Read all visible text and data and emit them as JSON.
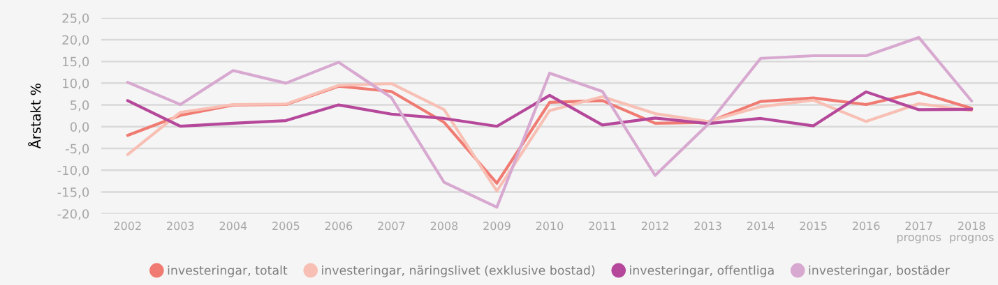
{
  "chart_data": {
    "type": "line",
    "ylabel": "Årstakt %",
    "categories": [
      "2002",
      "2003",
      "2004",
      "2005",
      "2006",
      "2007",
      "2008",
      "2009",
      "2010",
      "2011",
      "2012",
      "2013",
      "2014",
      "2015",
      "2016",
      "2017\nprognos",
      "2018\nprognos"
    ],
    "series": [
      {
        "name": "investeringar, totalt",
        "color": "#f07b72",
        "values": [
          -2.0,
          2.6,
          5.0,
          5.1,
          9.3,
          8.1,
          1.0,
          -13.0,
          5.6,
          6.0,
          0.8,
          1.0,
          5.8,
          6.6,
          5.1,
          7.9,
          4.2
        ]
      },
      {
        "name": "investeringar, näringslivet (exklusive bostad)",
        "color": "#f8c0b5",
        "values": [
          -6.4,
          3.3,
          5.1,
          5.2,
          9.5,
          9.9,
          3.9,
          -14.8,
          3.7,
          6.9,
          3.0,
          1.2,
          4.6,
          6.1,
          1.2,
          5.3,
          3.7
        ]
      },
      {
        "name": "investeringar, offentliga",
        "color": "#b5489a",
        "values": [
          6.0,
          0.1,
          0.8,
          1.4,
          5.0,
          2.9,
          1.9,
          0.1,
          7.2,
          0.4,
          2.0,
          0.7,
          1.9,
          0.2,
          8.0,
          3.9,
          4.0
        ]
      },
      {
        "name": "investeringar, bostäder",
        "color": "#d8a9d0",
        "values": [
          10.2,
          5.1,
          12.9,
          10.0,
          14.8,
          6.7,
          -12.8,
          -18.5,
          12.3,
          8.1,
          -11.2,
          0.5,
          15.7,
          16.3,
          16.3,
          20.5,
          5.9
        ]
      }
    ],
    "ylim": [
      -20,
      25
    ],
    "yticks": [
      {
        "value": -20,
        "label": "-20,0"
      },
      {
        "value": -15,
        "label": "-15,0"
      },
      {
        "value": -10,
        "label": "-10,0"
      },
      {
        "value": -5,
        "label": "-5,0"
      },
      {
        "value": 0,
        "label": "0,0"
      },
      {
        "value": 5,
        "label": "5,0"
      },
      {
        "value": 10,
        "label": "10,0"
      },
      {
        "value": 15,
        "label": "15,0"
      },
      {
        "value": 20,
        "label": "20,0"
      },
      {
        "value": 25,
        "label": "25,0"
      }
    ],
    "grid": "y",
    "legend": "bottom",
    "line_style": "solid"
  }
}
